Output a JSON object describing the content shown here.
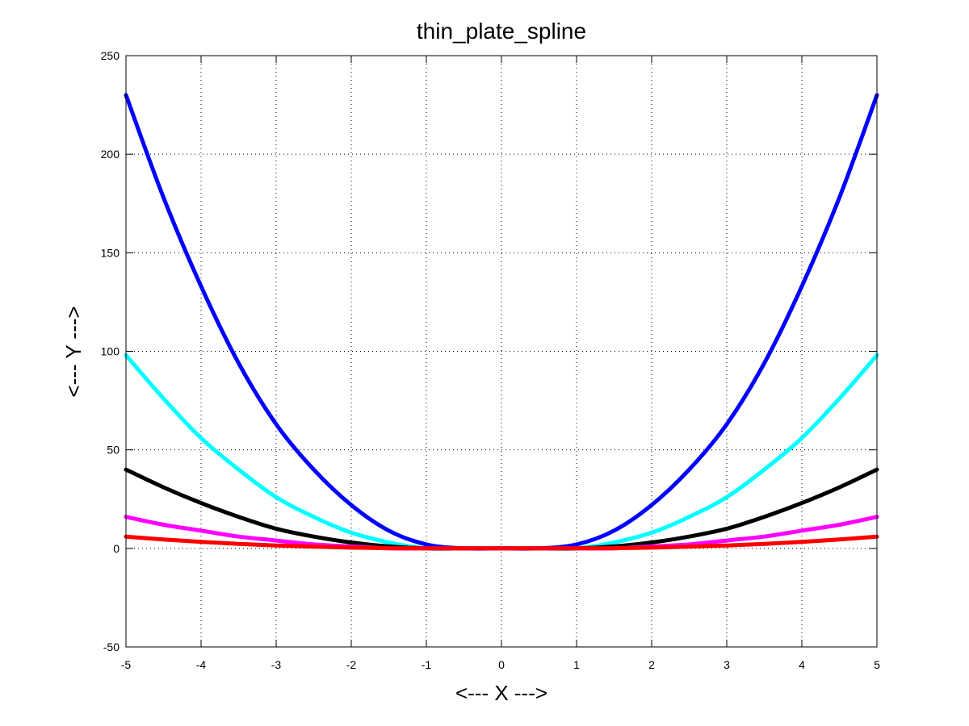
{
  "chart_data": {
    "type": "line",
    "title": "thin_plate_spline",
    "xlabel": "<--- X --->",
    "ylabel": "<--- Y --->",
    "xlim": [
      -5,
      5
    ],
    "ylim": [
      -50,
      250
    ],
    "xticks": [
      -5,
      -4,
      -3,
      -2,
      -1,
      0,
      1,
      2,
      3,
      4,
      5
    ],
    "yticks": [
      -50,
      0,
      50,
      100,
      150,
      200,
      250
    ],
    "grid": true,
    "x": [
      -5,
      -4.5,
      -4,
      -3.5,
      -3,
      -2.5,
      -2,
      -1.5,
      -1,
      -0.5,
      0,
      0.5,
      1,
      1.5,
      2,
      2.5,
      3,
      3.5,
      4,
      4.5,
      5
    ],
    "series": [
      {
        "color": "#0000ff",
        "values": [
          230,
          178,
          133,
          94,
          63,
          40,
          22,
          9,
          2,
          0,
          0,
          0,
          2,
          9,
          22,
          40,
          63,
          94,
          133,
          178,
          230
        ]
      },
      {
        "color": "#00ffff",
        "values": [
          98,
          76,
          56,
          40,
          26,
          16,
          8,
          3,
          0,
          0,
          0,
          0,
          0,
          3,
          8,
          16,
          26,
          40,
          56,
          76,
          98
        ]
      },
      {
        "color": "#000000",
        "values": [
          40,
          31,
          23,
          16,
          10,
          6,
          3,
          1,
          0,
          0,
          0,
          0,
          0,
          1,
          3,
          6,
          10,
          16,
          23,
          31,
          40
        ]
      },
      {
        "color": "#ff00ff",
        "values": [
          16,
          12,
          9,
          6,
          4,
          2,
          1,
          0,
          0,
          0,
          0,
          0,
          0,
          0,
          1,
          2,
          4,
          6,
          9,
          12,
          16
        ]
      },
      {
        "color": "#ff0000",
        "values": [
          6,
          4.5,
          3.3,
          2.3,
          1.5,
          0.9,
          0.4,
          0.1,
          0,
          0,
          0,
          0,
          0,
          0.1,
          0.4,
          0.9,
          1.5,
          2.3,
          3.3,
          4.5,
          6
        ]
      }
    ]
  }
}
